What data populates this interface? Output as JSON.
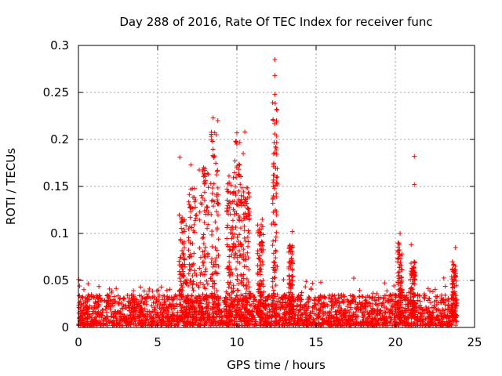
{
  "chart_data": {
    "type": "scatter",
    "title": "Day 288 of 2016, Rate Of TEC Index for receiver func",
    "xlabel": "GPS time / hours",
    "ylabel": "ROTI / TECUs",
    "xlim": [
      0,
      25
    ],
    "ylim": [
      0,
      0.3
    ],
    "xticks": [
      0,
      5,
      10,
      15,
      20,
      25
    ],
    "yticks": [
      0,
      0.05,
      0.1,
      0.15,
      0.2,
      0.25,
      0.3
    ],
    "xtick_labels": [
      "0",
      "5",
      "10",
      "15",
      "20",
      "25"
    ],
    "ytick_labels": [
      "0",
      "0.05",
      "0.1",
      "0.15",
      "0.2",
      "0.25",
      "0.3"
    ],
    "grid": true,
    "marker": "+",
    "series": [
      {
        "name": "ROTI",
        "color": "#ff0000",
        "notable_points": [
          {
            "x": 12.4,
            "y": 0.285
          },
          {
            "x": 12.4,
            "y": 0.268
          },
          {
            "x": 12.4,
            "y": 0.248
          },
          {
            "x": 12.5,
            "y": 0.232
          },
          {
            "x": 12.5,
            "y": 0.22
          },
          {
            "x": 8.5,
            "y": 0.223
          },
          {
            "x": 8.8,
            "y": 0.22
          },
          {
            "x": 8.7,
            "y": 0.205
          },
          {
            "x": 10.0,
            "y": 0.207
          },
          {
            "x": 10.5,
            "y": 0.208
          },
          {
            "x": 10.0,
            "y": 0.195
          },
          {
            "x": 10.4,
            "y": 0.185
          },
          {
            "x": 6.4,
            "y": 0.181
          },
          {
            "x": 21.2,
            "y": 0.182
          },
          {
            "x": 21.2,
            "y": 0.152
          },
          {
            "x": 7.1,
            "y": 0.173
          },
          {
            "x": 7.9,
            "y": 0.17
          },
          {
            "x": 8.2,
            "y": 0.163
          },
          {
            "x": 12.3,
            "y": 0.162
          },
          {
            "x": 9.5,
            "y": 0.161
          },
          {
            "x": 12.3,
            "y": 0.14
          },
          {
            "x": 12.2,
            "y": 0.11
          },
          {
            "x": 13.5,
            "y": 0.102
          },
          {
            "x": 20.3,
            "y": 0.1
          },
          {
            "x": 11.6,
            "y": 0.115
          },
          {
            "x": 23.8,
            "y": 0.085
          },
          {
            "x": 21.0,
            "y": 0.088
          }
        ]
      }
    ],
    "bursts": [
      {
        "x": 6.6,
        "w": 0.5,
        "peak": 0.12
      },
      {
        "x": 7.2,
        "w": 0.5,
        "peak": 0.15
      },
      {
        "x": 7.9,
        "w": 0.6,
        "peak": 0.17
      },
      {
        "x": 8.6,
        "w": 0.5,
        "peak": 0.21
      },
      {
        "x": 9.6,
        "w": 0.5,
        "peak": 0.16
      },
      {
        "x": 10.1,
        "w": 0.5,
        "peak": 0.2
      },
      {
        "x": 10.6,
        "w": 0.4,
        "peak": 0.15
      },
      {
        "x": 11.5,
        "w": 0.4,
        "peak": 0.11
      },
      {
        "x": 12.4,
        "w": 0.3,
        "peak": 0.24
      },
      {
        "x": 13.4,
        "w": 0.3,
        "peak": 0.09
      },
      {
        "x": 20.3,
        "w": 0.3,
        "peak": 0.09
      },
      {
        "x": 21.1,
        "w": 0.3,
        "peak": 0.07
      },
      {
        "x": 23.7,
        "w": 0.3,
        "peak": 0.07
      }
    ],
    "background": {
      "x_start": 0,
      "x_end": 23.9,
      "low": 0.002,
      "high": 0.035
    }
  }
}
